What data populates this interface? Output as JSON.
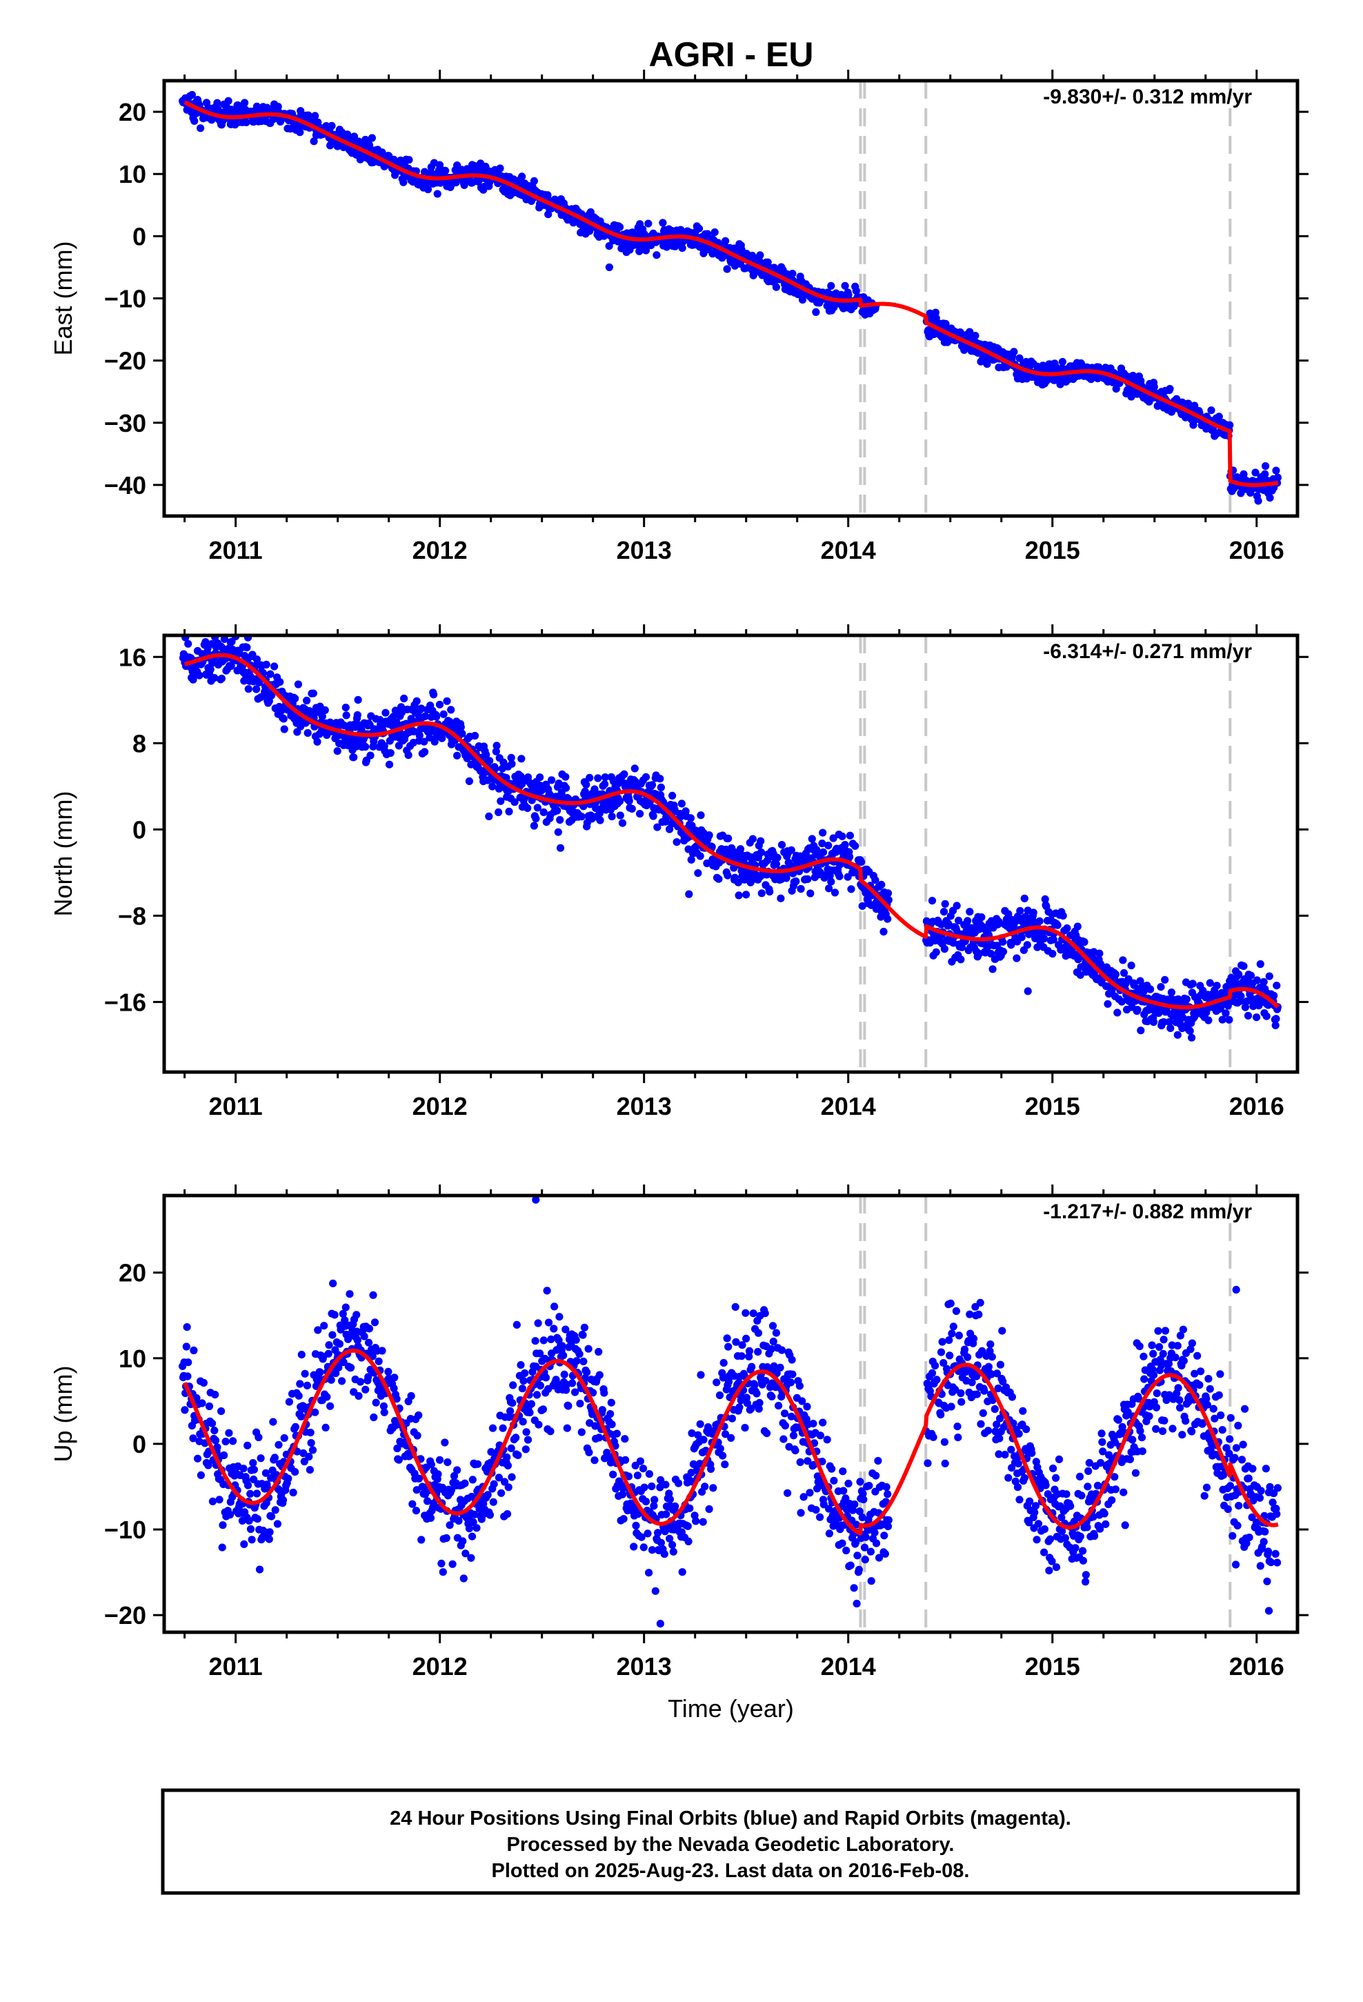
{
  "title": "AGRI - EU",
  "footer": {
    "line1": "24 Hour Positions Using Final Orbits (blue) and Rapid Orbits (magenta).",
    "line2": "Processed by the Nevada Geodetic Laboratory.",
    "line3": "Plotted on 2025-Aug-23. Last data on 2016-Feb-08."
  },
  "colors": {
    "points": "#0000ff",
    "model": "#ff0000",
    "events": "#c8c8c8",
    "frame": "#000000"
  },
  "chart_data": [
    {
      "type": "scatter",
      "component": "East",
      "ylabel": "East (mm)",
      "xlabel": "",
      "rate_label": "-9.830+/- 0.312 mm/yr",
      "xlim": [
        2010.65,
        2016.2
      ],
      "ylim": [
        -45,
        25
      ],
      "yticks": [
        20,
        10,
        0,
        -10,
        -20,
        -30,
        -40
      ],
      "ytick_labels": [
        "20",
        "10",
        "0",
        "−10",
        "−20",
        "−30",
        "−40"
      ],
      "xticks": [
        2011,
        2012,
        2013,
        2014,
        2015,
        2016
      ],
      "xtick_labels": [
        "2011",
        "2012",
        "2013",
        "2014",
        "2015",
        "2016"
      ],
      "event_lines": [
        2014.06,
        2014.08,
        2014.38,
        2015.87
      ],
      "model": {
        "rate": -9.83,
        "t0": 2010.75,
        "offset": 22.6,
        "annual_amp": 1.5,
        "annual_phase": 2011.33,
        "semi_amp": 0.35,
        "semi_phase": 2011.2,
        "steps": [
          {
            "t": 2014.06,
            "size": -1.0
          },
          {
            "t": 2014.38,
            "size": -1.0
          },
          {
            "t": 2015.87,
            "size": -8.0
          }
        ],
        "noise": 0.9
      },
      "gaps": [
        [
          2014.14,
          2014.38
        ]
      ],
      "outliers": [
        {
          "x": 2012.83,
          "y": -5.0
        }
      ]
    },
    {
      "type": "scatter",
      "component": "North",
      "ylabel": "North (mm)",
      "xlabel": "",
      "rate_label": "-6.314+/- 0.271 mm/yr",
      "xlim": [
        2010.65,
        2016.2
      ],
      "ylim": [
        -22.5,
        18
      ],
      "yticks": [
        16,
        8,
        0,
        -8,
        -16
      ],
      "ytick_labels": [
        "16",
        "8",
        "0",
        "−8",
        "−16"
      ],
      "xticks": [
        2011,
        2012,
        2013,
        2014,
        2015,
        2016
      ],
      "xtick_labels": [
        "2011",
        "2012",
        "2013",
        "2014",
        "2015",
        "2016"
      ],
      "event_lines": [
        2014.06,
        2014.08,
        2014.38,
        2015.87
      ],
      "model": {
        "rate": -6.314,
        "t0": 2010.75,
        "offset": 15.4,
        "annual_amp": 1.8,
        "annual_phase": 2011.98,
        "semi_amp": 0.3,
        "semi_phase": 2011.5,
        "steps": [
          {
            "t": 2014.06,
            "size": -1.0
          },
          {
            "t": 2014.38,
            "size": 1.0
          },
          {
            "t": 2015.87,
            "size": 0.6
          }
        ],
        "noise": 1.1
      },
      "gaps": [
        [
          2014.2,
          2014.38
        ]
      ],
      "outliers": [
        {
          "x": 2013.22,
          "y": -6.0
        },
        {
          "x": 2014.88,
          "y": -15.0
        }
      ]
    },
    {
      "type": "scatter",
      "component": "Up",
      "ylabel": "Up (mm)",
      "xlabel": "Time (year)",
      "rate_label": "-1.217+/- 0.882 mm/yr",
      "xlim": [
        2010.65,
        2016.2
      ],
      "ylim": [
        -22,
        29
      ],
      "yticks": [
        20,
        10,
        0,
        -10,
        -20
      ],
      "ytick_labels": [
        "20",
        "10",
        "0",
        "−10",
        "−20"
      ],
      "xticks": [
        2011,
        2012,
        2013,
        2014,
        2015,
        2016
      ],
      "xtick_labels": [
        "2011",
        "2012",
        "2013",
        "2014",
        "2015",
        "2016"
      ],
      "event_lines": [
        2014.06,
        2014.08,
        2014.38,
        2015.87
      ],
      "model": {
        "rate": -1.217,
        "t0": 2010.75,
        "offset": 2.7,
        "annual_amp": 9.2,
        "annual_phase": 2011.58,
        "semi_amp": 0.0,
        "semi_phase": 2011.0,
        "steps": [
          {
            "t": 2014.06,
            "size": 1.0
          },
          {
            "t": 2014.38,
            "size": 1.0
          },
          {
            "t": 2015.87,
            "size": 1.5
          }
        ],
        "noise": 3.3
      },
      "gaps": [
        [
          2014.2,
          2014.38
        ]
      ],
      "outliers": [
        {
          "x": 2012.47,
          "y": 28.5
        },
        {
          "x": 2013.08,
          "y": -21.0
        },
        {
          "x": 2016.06,
          "y": -19.5
        },
        {
          "x": 2015.9,
          "y": 18.0
        }
      ]
    }
  ]
}
